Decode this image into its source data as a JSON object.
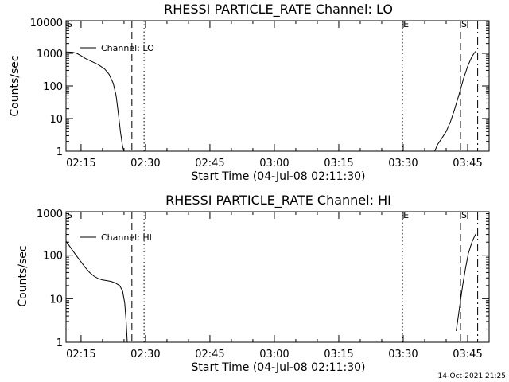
{
  "footer": {
    "timestamp": "14-Oct-2021 21:25"
  },
  "chart_data": [
    {
      "type": "line",
      "title": "RHESSI PARTICLE_RATE Channel: LO",
      "xlabel": "Start Time (04-Jul-08 02:11:30)",
      "ylabel": "Counts/sec",
      "y_scale": "log",
      "x_range": [
        "02:11:30",
        "03:50:00"
      ],
      "ylim": [
        1,
        10000
      ],
      "xticks": [
        "02:15",
        "02:30",
        "02:45",
        "03:00",
        "03:15",
        "03:30",
        "03:45"
      ],
      "yticks": [
        "1",
        "10",
        "100",
        "1000",
        "10000"
      ],
      "legend": {
        "position": "top-left",
        "entries": [
          "Channel: LO"
        ]
      },
      "series": [
        {
          "name": "Channel: LO",
          "segments": [
            [
              [
                "02:11:30",
                1100
              ],
              [
                "02:13:00",
                1080
              ],
              [
                "02:14:00",
                1000
              ],
              [
                "02:15:00",
                850
              ],
              [
                "02:16:00",
                700
              ],
              [
                "02:17:30",
                560
              ],
              [
                "02:19:00",
                450
              ],
              [
                "02:20:30",
                330
              ],
              [
                "02:21:30",
                230
              ],
              [
                "02:22:30",
                120
              ],
              [
                "02:23:10",
                50
              ],
              [
                "02:23:40",
                15
              ],
              [
                "02:24:10",
                4
              ],
              [
                "02:24:40",
                1.4
              ],
              [
                "02:25:00",
                1
              ]
            ],
            [
              [
                "03:37:20",
                1
              ],
              [
                "03:38:00",
                1.6
              ],
              [
                "03:39:00",
                2.5
              ],
              [
                "03:40:00",
                4
              ],
              [
                "03:41:00",
                8
              ],
              [
                "03:42:00",
                20
              ],
              [
                "03:43:00",
                55
              ],
              [
                "03:44:00",
                160
              ],
              [
                "03:45:00",
                400
              ],
              [
                "03:46:00",
                800
              ],
              [
                "03:46:50",
                1150
              ]
            ]
          ]
        }
      ],
      "vlines": [
        {
          "time": "02:11:30",
          "style": "dashed-top",
          "label": "S"
        },
        {
          "time": "02:26:50",
          "style": "dashed",
          "label": ""
        },
        {
          "time": "02:29:40",
          "style": "dotted",
          "label": ""
        },
        {
          "time": "03:29:50",
          "style": "dotted",
          "label": "E"
        },
        {
          "time": "03:43:20",
          "style": "dashed",
          "label": "S"
        },
        {
          "time": "03:47:20",
          "style": "dashdot",
          "label": ""
        }
      ]
    },
    {
      "type": "line",
      "title": "RHESSI PARTICLE_RATE Channel: HI",
      "xlabel": "Start Time (04-Jul-08 02:11:30)",
      "ylabel": "Counts/sec",
      "y_scale": "log",
      "x_range": [
        "02:11:30",
        "03:50:00"
      ],
      "ylim": [
        1,
        1000
      ],
      "xticks": [
        "02:15",
        "02:30",
        "02:45",
        "03:00",
        "03:15",
        "03:30",
        "03:45"
      ],
      "yticks": [
        "1",
        "10",
        "100",
        "1000"
      ],
      "legend": {
        "position": "top-left",
        "entries": [
          "Channel: HI"
        ]
      },
      "series": [
        {
          "name": "Channel: HI",
          "segments": [
            [
              [
                "02:11:30",
                210
              ],
              [
                "02:12:10",
                170
              ],
              [
                "02:13:00",
                130
              ],
              [
                "02:14:00",
                95
              ],
              [
                "02:15:00",
                70
              ],
              [
                "02:16:00",
                52
              ],
              [
                "02:17:00",
                40
              ],
              [
                "02:18:00",
                33
              ],
              [
                "02:19:00",
                29
              ],
              [
                "02:20:00",
                27
              ],
              [
                "02:21:00",
                26
              ],
              [
                "02:22:00",
                25
              ],
              [
                "02:23:00",
                23
              ],
              [
                "02:24:00",
                20
              ],
              [
                "02:24:40",
                15
              ],
              [
                "02:25:10",
                8
              ],
              [
                "02:25:30",
                3
              ],
              [
                "02:25:45",
                1
              ]
            ],
            [
              [
                "03:42:20",
                1.8
              ],
              [
                "03:42:50",
                4
              ],
              [
                "03:43:20",
                9
              ],
              [
                "03:43:50",
                20
              ],
              [
                "03:44:30",
                50
              ],
              [
                "03:45:10",
                110
              ],
              [
                "03:46:00",
                200
              ],
              [
                "03:46:40",
                280
              ],
              [
                "03:47:00",
                320
              ]
            ]
          ]
        }
      ],
      "vlines": [
        {
          "time": "02:11:30",
          "style": "dashed-top",
          "label": "S"
        },
        {
          "time": "02:26:50",
          "style": "dashed",
          "label": ""
        },
        {
          "time": "02:29:40",
          "style": "dotted",
          "label": ""
        },
        {
          "time": "03:29:50",
          "style": "dotted",
          "label": "E"
        },
        {
          "time": "03:43:20",
          "style": "dashed",
          "label": "S"
        },
        {
          "time": "03:47:20",
          "style": "dashdot",
          "label": ""
        }
      ]
    }
  ]
}
